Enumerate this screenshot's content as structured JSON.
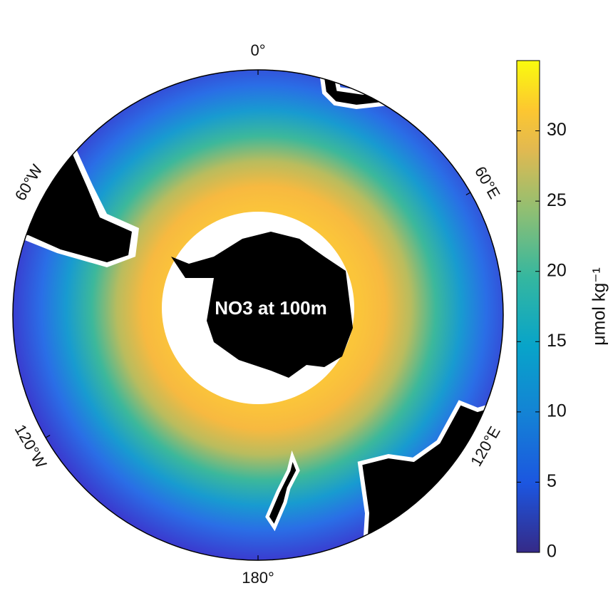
{
  "map": {
    "title": "NO3 at 100m",
    "longitude_labels": [
      {
        "label": "0°",
        "angle": 0
      },
      {
        "label": "60°E",
        "angle": 60
      },
      {
        "label": "120°E",
        "angle": 120
      },
      {
        "label": "180°",
        "angle": 180
      },
      {
        "label": "120°W",
        "angle": -120
      },
      {
        "label": "60°W",
        "angle": -60
      }
    ],
    "colorbar": {
      "label": "μmol kg⁻¹",
      "lim": [
        0,
        35
      ],
      "ticks": [
        0,
        5,
        10,
        15,
        20,
        25,
        30
      ]
    }
  }
}
